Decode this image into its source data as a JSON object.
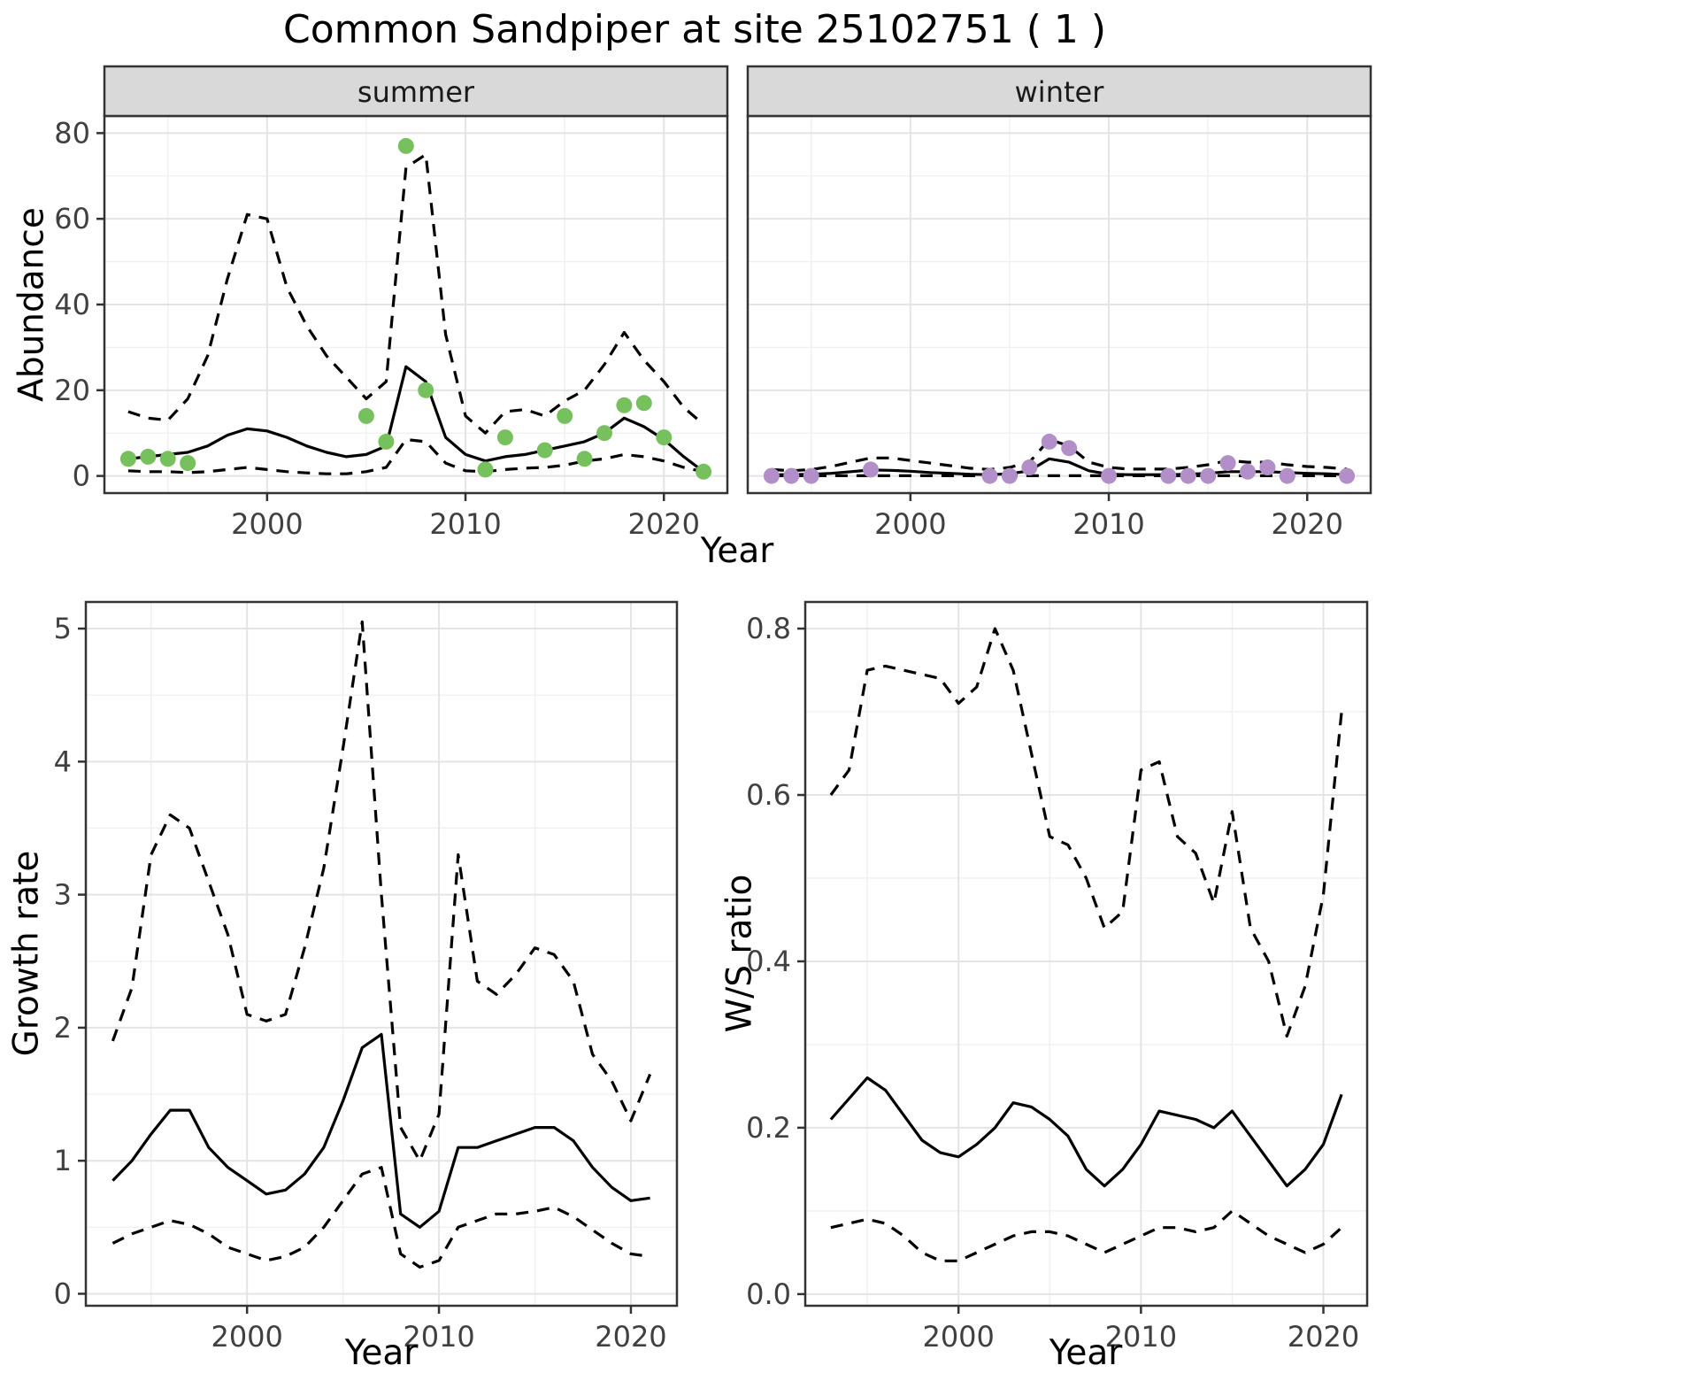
{
  "title": "Common Sandpiper at site 25102751 ( 1 )",
  "colors": {
    "summer_point": "#76c05e",
    "winter_point": "#b28fc8",
    "line": "#000000",
    "strip_bg": "#d9d9d9",
    "strip_border": "#333333",
    "panel_border": "#333333",
    "grid_major": "#e4e4e4",
    "grid_minor": "#f0f0f0",
    "tick": "#333333",
    "tick_label": "#404040",
    "strip_text": "#1a1a1a"
  },
  "chart_data": [
    {
      "id": "abundance-summer",
      "type": "line",
      "facet": "summer",
      "xlabel": "Year",
      "ylabel": "Abundance",
      "xlim": [
        1991.8,
        2023.2
      ],
      "ylim": [
        -4,
        84
      ],
      "x_ticks": [
        2000,
        2010,
        2020
      ],
      "x_tick_labels": [
        "2000",
        "2010",
        "2020"
      ],
      "x_minor": [
        1995,
        2005,
        2015
      ],
      "y_ticks": [
        0,
        20,
        40,
        60,
        80
      ],
      "y_tick_labels": [
        "0",
        "20",
        "40",
        "60",
        "80"
      ],
      "y_minor": [
        10,
        30,
        50,
        70
      ],
      "years": [
        1993,
        1994,
        1995,
        1996,
        1997,
        1998,
        1999,
        2000,
        2001,
        2002,
        2003,
        2004,
        2005,
        2006,
        2007,
        2008,
        2009,
        2010,
        2011,
        2012,
        2013,
        2014,
        2015,
        2016,
        2017,
        2018,
        2019,
        2020,
        2021,
        2022
      ],
      "series": [
        {
          "name": "upper95",
          "style": "dashed",
          "y": [
            15,
            13.5,
            13,
            18,
            28,
            46,
            61,
            60,
            44,
            35,
            28,
            23,
            18,
            22,
            72,
            75,
            33,
            14,
            10,
            15,
            15.5,
            14,
            17.5,
            20,
            26,
            33.5,
            27,
            22,
            16,
            12
          ]
        },
        {
          "name": "lower95",
          "style": "dashed",
          "y": [
            1.2,
            1,
            1,
            0.8,
            1,
            1.5,
            2,
            1.5,
            1,
            0.7,
            0.5,
            0.5,
            1,
            2,
            8.5,
            8,
            3,
            1.2,
            1,
            1.5,
            1.8,
            2,
            2.5,
            3.5,
            4,
            5,
            4.5,
            3.5,
            2,
            1
          ]
        },
        {
          "name": "fit",
          "style": "solid",
          "y": [
            4,
            4.5,
            5,
            5.5,
            7,
            9.5,
            11,
            10.5,
            9,
            7,
            5.5,
            4.5,
            5,
            7,
            25.5,
            22,
            9,
            5,
            3.5,
            4.5,
            5,
            6,
            7,
            8,
            10,
            13.5,
            11.5,
            8.5,
            4.5,
            1
          ]
        }
      ],
      "points": {
        "name": "summer-observations",
        "color_key": "summer_point",
        "x": [
          1993,
          1994,
          1995,
          1996,
          2005,
          2006,
          2007,
          2008,
          2011,
          2012,
          2014,
          2015,
          2016,
          2017,
          2018,
          2019,
          2020,
          2022
        ],
        "y": [
          4,
          4.5,
          4,
          3,
          14,
          8,
          77,
          20,
          1.5,
          9,
          6,
          14,
          4,
          10,
          16.5,
          17,
          9,
          1
        ]
      }
    },
    {
      "id": "abundance-winter",
      "type": "line",
      "facet": "winter",
      "xlabel": "Year",
      "ylabel": "Abundance",
      "xlim": [
        1991.8,
        2023.2
      ],
      "ylim": [
        -4,
        84
      ],
      "x_ticks": [
        2000,
        2010,
        2020
      ],
      "x_tick_labels": [
        "2000",
        "2010",
        "2020"
      ],
      "x_minor": [
        1995,
        2005,
        2015
      ],
      "y_ticks": [
        0,
        20,
        40,
        60,
        80
      ],
      "y_tick_labels": [
        "0",
        "20",
        "40",
        "60",
        "80"
      ],
      "y_minor": [
        10,
        30,
        50,
        70
      ],
      "years": [
        1993,
        1994,
        1995,
        1996,
        1997,
        1998,
        1999,
        2000,
        2001,
        2002,
        2003,
        2004,
        2005,
        2006,
        2007,
        2008,
        2009,
        2010,
        2011,
        2012,
        2013,
        2014,
        2015,
        2016,
        2017,
        2018,
        2019,
        2020,
        2021,
        2022
      ],
      "series": [
        {
          "name": "upper95",
          "style": "dashed",
          "y": [
            1.5,
            1.2,
            1.5,
            2.2,
            3.2,
            4.2,
            4.2,
            3.6,
            3,
            2.4,
            1.8,
            1.5,
            2,
            3.2,
            8.5,
            7,
            3.2,
            2,
            1.6,
            1.6,
            1.6,
            2,
            2.6,
            3.6,
            3.2,
            3.2,
            2.6,
            2.2,
            2,
            1.6
          ]
        },
        {
          "name": "lower95",
          "style": "dashed",
          "y": [
            0.05,
            0.05,
            0.05,
            0.05,
            0.05,
            0.05,
            0.05,
            0.05,
            0.05,
            0.05,
            0.05,
            0.05,
            0.05,
            0.05,
            0.05,
            0.05,
            0.05,
            0.05,
            0.05,
            0.05,
            0.05,
            0.05,
            0.05,
            0.05,
            0.05,
            0.05,
            0.05,
            0.05,
            0.05,
            0.05
          ]
        },
        {
          "name": "fit",
          "style": "solid",
          "y": [
            0.3,
            0.3,
            0.4,
            0.6,
            1,
            1.4,
            1.3,
            1.1,
            0.8,
            0.6,
            0.4,
            0.3,
            0.5,
            1.2,
            4,
            3.2,
            1.2,
            0.4,
            0.3,
            0.3,
            0.3,
            0.4,
            0.6,
            1,
            1,
            1,
            0.8,
            0.6,
            0.5,
            0.3
          ]
        }
      ],
      "points": {
        "name": "winter-observations",
        "color_key": "winter_point",
        "x": [
          1993,
          1994,
          1995,
          1998,
          2004,
          2005,
          2006,
          2007,
          2008,
          2010,
          2013,
          2014,
          2015,
          2016,
          2017,
          2018,
          2019,
          2022
        ],
        "y": [
          0,
          0,
          0,
          1.5,
          0,
          0,
          2,
          8,
          6.5,
          0,
          0,
          0,
          0,
          3,
          1,
          2,
          0,
          0
        ]
      }
    },
    {
      "id": "growth-rate",
      "type": "line",
      "xlabel": "Year",
      "ylabel": "Growth rate",
      "xlim": [
        1991.6,
        2022.4
      ],
      "ylim": [
        -0.09,
        5.2
      ],
      "x_ticks": [
        2000,
        2010,
        2020
      ],
      "x_tick_labels": [
        "2000",
        "2010",
        "2020"
      ],
      "x_minor": [
        1995,
        2005,
        2015
      ],
      "y_ticks": [
        0,
        1,
        2,
        3,
        4,
        5
      ],
      "y_tick_labels": [
        "0",
        "1",
        "2",
        "3",
        "4",
        "5"
      ],
      "y_minor": [
        0.5,
        1.5,
        2.5,
        3.5,
        4.5
      ],
      "years": [
        1993,
        1994,
        1995,
        1996,
        1997,
        1998,
        1999,
        2000,
        2001,
        2002,
        2003,
        2004,
        2005,
        2006,
        2007,
        2008,
        2009,
        2010,
        2011,
        2012,
        2013,
        2014,
        2015,
        2016,
        2017,
        2018,
        2019,
        2020,
        2021
      ],
      "series": [
        {
          "name": "upper95",
          "style": "dashed",
          "y": [
            1.9,
            2.3,
            3.3,
            3.6,
            3.5,
            3.1,
            2.7,
            2.1,
            2.05,
            2.1,
            2.6,
            3.2,
            4.1,
            5.05,
            3.0,
            1.25,
            1.0,
            1.35,
            3.3,
            2.35,
            2.25,
            2.4,
            2.6,
            2.55,
            2.35,
            1.8,
            1.6,
            1.3,
            1.65
          ]
        },
        {
          "name": "lower95",
          "style": "dashed",
          "y": [
            0.38,
            0.45,
            0.5,
            0.55,
            0.52,
            0.45,
            0.35,
            0.3,
            0.25,
            0.28,
            0.35,
            0.5,
            0.7,
            0.9,
            0.95,
            0.3,
            0.2,
            0.25,
            0.5,
            0.55,
            0.6,
            0.6,
            0.62,
            0.65,
            0.58,
            0.48,
            0.38,
            0.3,
            0.28
          ]
        },
        {
          "name": "fit",
          "style": "solid",
          "y": [
            0.85,
            1.0,
            1.2,
            1.38,
            1.38,
            1.1,
            0.95,
            0.85,
            0.75,
            0.78,
            0.9,
            1.1,
            1.45,
            1.85,
            1.95,
            0.6,
            0.5,
            0.62,
            1.1,
            1.1,
            1.15,
            1.2,
            1.25,
            1.25,
            1.15,
            0.95,
            0.8,
            0.7,
            0.72
          ]
        }
      ]
    },
    {
      "id": "ws-ratio",
      "type": "line",
      "xlabel": "Year",
      "ylabel": "W/S ratio",
      "xlim": [
        1991.6,
        2022.4
      ],
      "ylim": [
        -0.014,
        0.832
      ],
      "x_ticks": [
        2000,
        2010,
        2020
      ],
      "x_tick_labels": [
        "2000",
        "2010",
        "2020"
      ],
      "x_minor": [
        1995,
        2005,
        2015
      ],
      "y_ticks": [
        0,
        0.2,
        0.4,
        0.6,
        0.8
      ],
      "y_tick_labels": [
        "0.0",
        "0.2",
        "0.4",
        "0.6",
        "0.8"
      ],
      "y_minor": [
        0.1,
        0.3,
        0.5,
        0.7
      ],
      "years": [
        1993,
        1994,
        1995,
        1996,
        1997,
        1998,
        1999,
        2000,
        2001,
        2002,
        2003,
        2004,
        2005,
        2006,
        2007,
        2008,
        2009,
        2010,
        2011,
        2012,
        2013,
        2014,
        2015,
        2016,
        2017,
        2018,
        2019,
        2020,
        2021
      ],
      "series": [
        {
          "name": "upper95",
          "style": "dashed",
          "y": [
            0.6,
            0.63,
            0.75,
            0.755,
            0.75,
            0.745,
            0.74,
            0.71,
            0.73,
            0.8,
            0.75,
            0.65,
            0.55,
            0.54,
            0.5,
            0.44,
            0.46,
            0.63,
            0.64,
            0.55,
            0.53,
            0.47,
            0.58,
            0.44,
            0.4,
            0.31,
            0.37,
            0.48,
            0.7
          ]
        },
        {
          "name": "lower95",
          "style": "dashed",
          "y": [
            0.08,
            0.085,
            0.09,
            0.085,
            0.07,
            0.05,
            0.04,
            0.04,
            0.05,
            0.06,
            0.07,
            0.075,
            0.075,
            0.07,
            0.06,
            0.05,
            0.06,
            0.07,
            0.08,
            0.08,
            0.075,
            0.08,
            0.1,
            0.085,
            0.07,
            0.06,
            0.05,
            0.06,
            0.08
          ]
        },
        {
          "name": "fit",
          "style": "solid",
          "y": [
            0.21,
            0.235,
            0.26,
            0.245,
            0.215,
            0.185,
            0.17,
            0.165,
            0.18,
            0.2,
            0.23,
            0.225,
            0.21,
            0.19,
            0.15,
            0.13,
            0.15,
            0.18,
            0.22,
            0.215,
            0.21,
            0.2,
            0.22,
            0.19,
            0.16,
            0.13,
            0.15,
            0.18,
            0.24
          ]
        }
      ]
    }
  ]
}
